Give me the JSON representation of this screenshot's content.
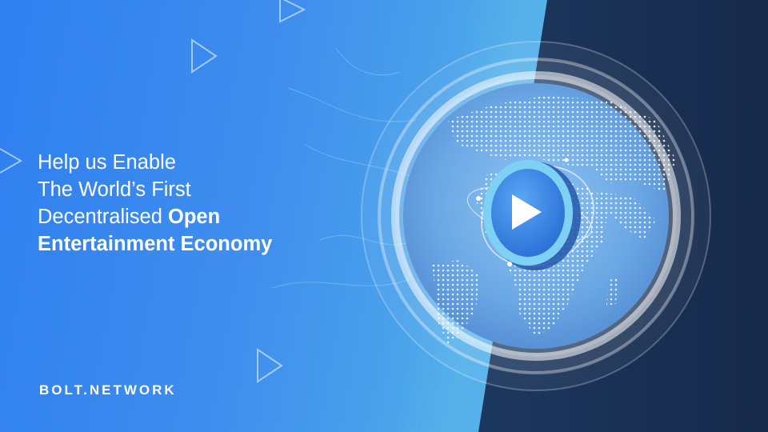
{
  "headline": {
    "line1": "Help us Enable",
    "line2": "The World’s First",
    "line3_regular": "Decentralised ",
    "line3_bold": "Open",
    "line4_bold": "Entertainment Economy"
  },
  "brand": {
    "name": "BOLT.NETWORK"
  },
  "icons": [
    "play-icon",
    "play-outline-icon",
    "globe-icon"
  ],
  "colors": {
    "primary_blue": "#2f7ff0",
    "dark_navy": "#16294a",
    "white": "#ffffff"
  }
}
